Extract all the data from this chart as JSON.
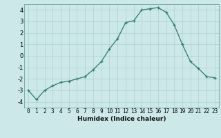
{
  "x": [
    0,
    1,
    2,
    3,
    4,
    5,
    6,
    7,
    8,
    9,
    10,
    11,
    12,
    13,
    14,
    15,
    16,
    17,
    18,
    19,
    20,
    21,
    22,
    23
  ],
  "y": [
    -3.0,
    -3.8,
    -3.0,
    -2.6,
    -2.3,
    -2.2,
    -2.0,
    -1.8,
    -1.2,
    -0.5,
    0.6,
    1.5,
    2.9,
    3.05,
    4.0,
    4.1,
    4.2,
    3.8,
    2.7,
    1.0,
    -0.5,
    -1.1,
    -1.8,
    -1.9
  ],
  "xlabel": "Humidex (Indice chaleur)",
  "ylabel": "",
  "bg_color": "#cce8e8",
  "grid_color": "#b0d0d0",
  "line_color": "#2d7a6a",
  "marker_color": "#2d7a6a",
  "xlim": [
    -0.5,
    23.5
  ],
  "ylim": [
    -4.5,
    4.5
  ],
  "yticks": [
    -4,
    -3,
    -2,
    -1,
    0,
    1,
    2,
    3,
    4
  ],
  "xticks": [
    0,
    1,
    2,
    3,
    4,
    5,
    6,
    7,
    8,
    9,
    10,
    11,
    12,
    13,
    14,
    15,
    16,
    17,
    18,
    19,
    20,
    21,
    22,
    23
  ],
  "xlabel_fontsize": 6.5,
  "tick_fontsize": 5.5,
  "xlabel_fontweight": "bold"
}
